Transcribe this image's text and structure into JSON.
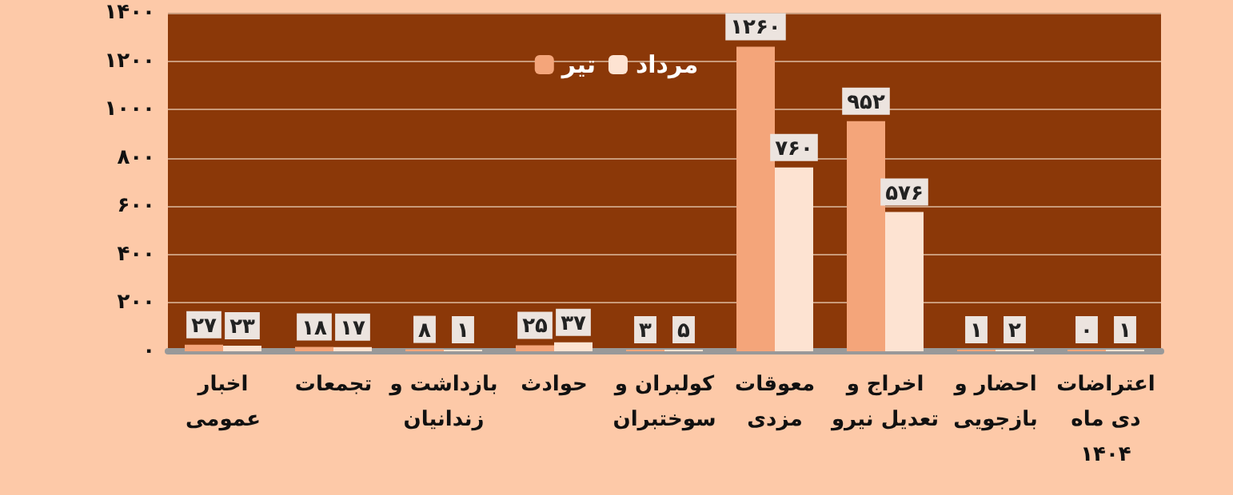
{
  "chart_data": {
    "type": "bar",
    "categories": [
      "اخبار\nعمومی",
      "تجمعات",
      "بازداشت و\nزندانیان",
      "حوادث",
      "کولبران و\nسوختبران",
      "معوقات\nمزدی",
      "اخراج و\nتعدیل نیرو",
      "احضار و\nبازجویی",
      "اعتراضات\nدی ماه\n۱۴۰۴"
    ],
    "series": [
      {
        "name": "تیر",
        "color": "#f4a57a",
        "values": [
          27,
          18,
          8,
          25,
          3,
          1260,
          952,
          1,
          0
        ],
        "value_labels": [
          "۲۷",
          "۱۸",
          "۸",
          "۲۵",
          "۳",
          "۱۲۶۰",
          "۹۵۲",
          "۱",
          "۰"
        ]
      },
      {
        "name": "مرداد",
        "color": "#fde3d2",
        "values": [
          23,
          17,
          1,
          37,
          5,
          760,
          576,
          2,
          1
        ],
        "value_labels": [
          "۲۳",
          "۱۷",
          "۱",
          "۳۷",
          "۵",
          "۷۶۰",
          "۵۷۶",
          "۲",
          "۱"
        ]
      }
    ],
    "ylim": [
      0,
      1400
    ],
    "yticks": [
      {
        "value": 0,
        "label": "۰"
      },
      {
        "value": 200,
        "label": "۲۰۰"
      },
      {
        "value": 400,
        "label": "۴۰۰"
      },
      {
        "value": 600,
        "label": "۶۰۰"
      },
      {
        "value": 800,
        "label": "۸۰۰"
      },
      {
        "value": 1000,
        "label": "۱۰۰۰"
      },
      {
        "value": 1200,
        "label": "۱۲۰۰"
      },
      {
        "value": 1400,
        "label": "۱۴۰۰"
      }
    ],
    "grid": "y",
    "legend": "top"
  }
}
